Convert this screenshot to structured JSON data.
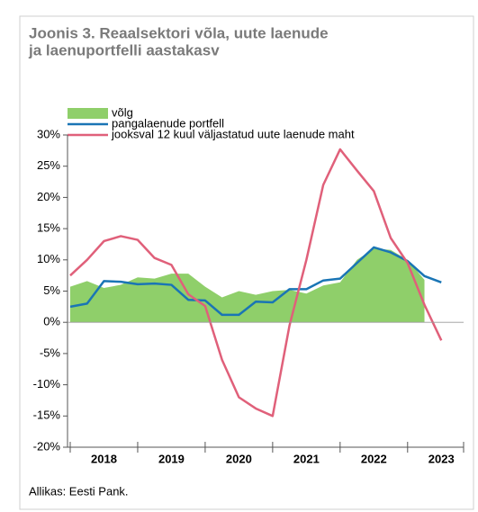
{
  "chart_data": {
    "type": "line",
    "title": [
      "Joonis 3. Reaalsektori võla, uute laenude",
      "ja laenuportfelli aastakasv"
    ],
    "source": "Allikas: Eesti Pank.",
    "x": [
      2018.0,
      2018.25,
      2018.5,
      2018.75,
      2019.0,
      2019.25,
      2019.5,
      2019.75,
      2020.0,
      2020.25,
      2020.5,
      2020.75,
      2021.0,
      2021.25,
      2021.5,
      2021.75,
      2022.0,
      2022.25,
      2022.5,
      2022.75,
      2023.0,
      2023.25,
      2023.5
    ],
    "series": [
      {
        "name": "võlg",
        "kind": "area",
        "color": "#8fcf6a",
        "values": [
          5.7,
          6.6,
          5.5,
          6.0,
          7.2,
          7.0,
          7.8,
          7.8,
          5.7,
          4.0,
          5.0,
          4.4,
          5.0,
          5.2,
          4.6,
          5.9,
          6.4,
          10.0,
          11.8,
          11.6,
          10.0,
          6.8,
          null
        ]
      },
      {
        "name": "pangalaenude portfell",
        "kind": "line",
        "color": "#1a75b5",
        "values": [
          2.5,
          3.0,
          6.6,
          6.5,
          6.1,
          6.2,
          6.0,
          3.6,
          3.5,
          1.2,
          1.2,
          3.3,
          3.2,
          5.3,
          5.3,
          6.7,
          7.0,
          9.5,
          12.0,
          11.2,
          9.8,
          7.4,
          6.4
        ]
      },
      {
        "name": "jooksval 12 kuul väljastatud uute laenude maht",
        "kind": "line",
        "color": "#e0607a",
        "values": [
          7.5,
          10.0,
          13.0,
          13.8,
          13.2,
          10.3,
          9.2,
          4.5,
          2.6,
          -6.0,
          -12.0,
          -13.8,
          -15.0,
          -0.5,
          10.0,
          22.0,
          27.7,
          24.3,
          21.0,
          13.5,
          9.5,
          2.8,
          -2.9
        ]
      }
    ],
    "xlim": [
      2017.96,
      2023.83
    ],
    "xticks": [
      {
        "value": 2018.5,
        "label": "2018"
      },
      {
        "value": 2019.5,
        "label": "2019"
      },
      {
        "value": 2020.5,
        "label": "2020"
      },
      {
        "value": 2021.5,
        "label": "2021"
      },
      {
        "value": 2022.5,
        "label": "2022"
      },
      {
        "value": 2023.5,
        "label": "2023"
      }
    ],
    "ylim": [
      -20,
      30
    ],
    "yticks": [
      {
        "value": -20,
        "label": "-20%"
      },
      {
        "value": -15,
        "label": "-15%"
      },
      {
        "value": -10,
        "label": "-10%"
      },
      {
        "value": -5,
        "label": "-5%"
      },
      {
        "value": 0,
        "label": "0%"
      },
      {
        "value": 5,
        "label": "5%"
      },
      {
        "value": 10,
        "label": "10%"
      },
      {
        "value": 15,
        "label": "15%"
      },
      {
        "value": 20,
        "label": "20%"
      },
      {
        "value": 25,
        "label": "25%"
      },
      {
        "value": 30,
        "label": "30%"
      }
    ]
  }
}
